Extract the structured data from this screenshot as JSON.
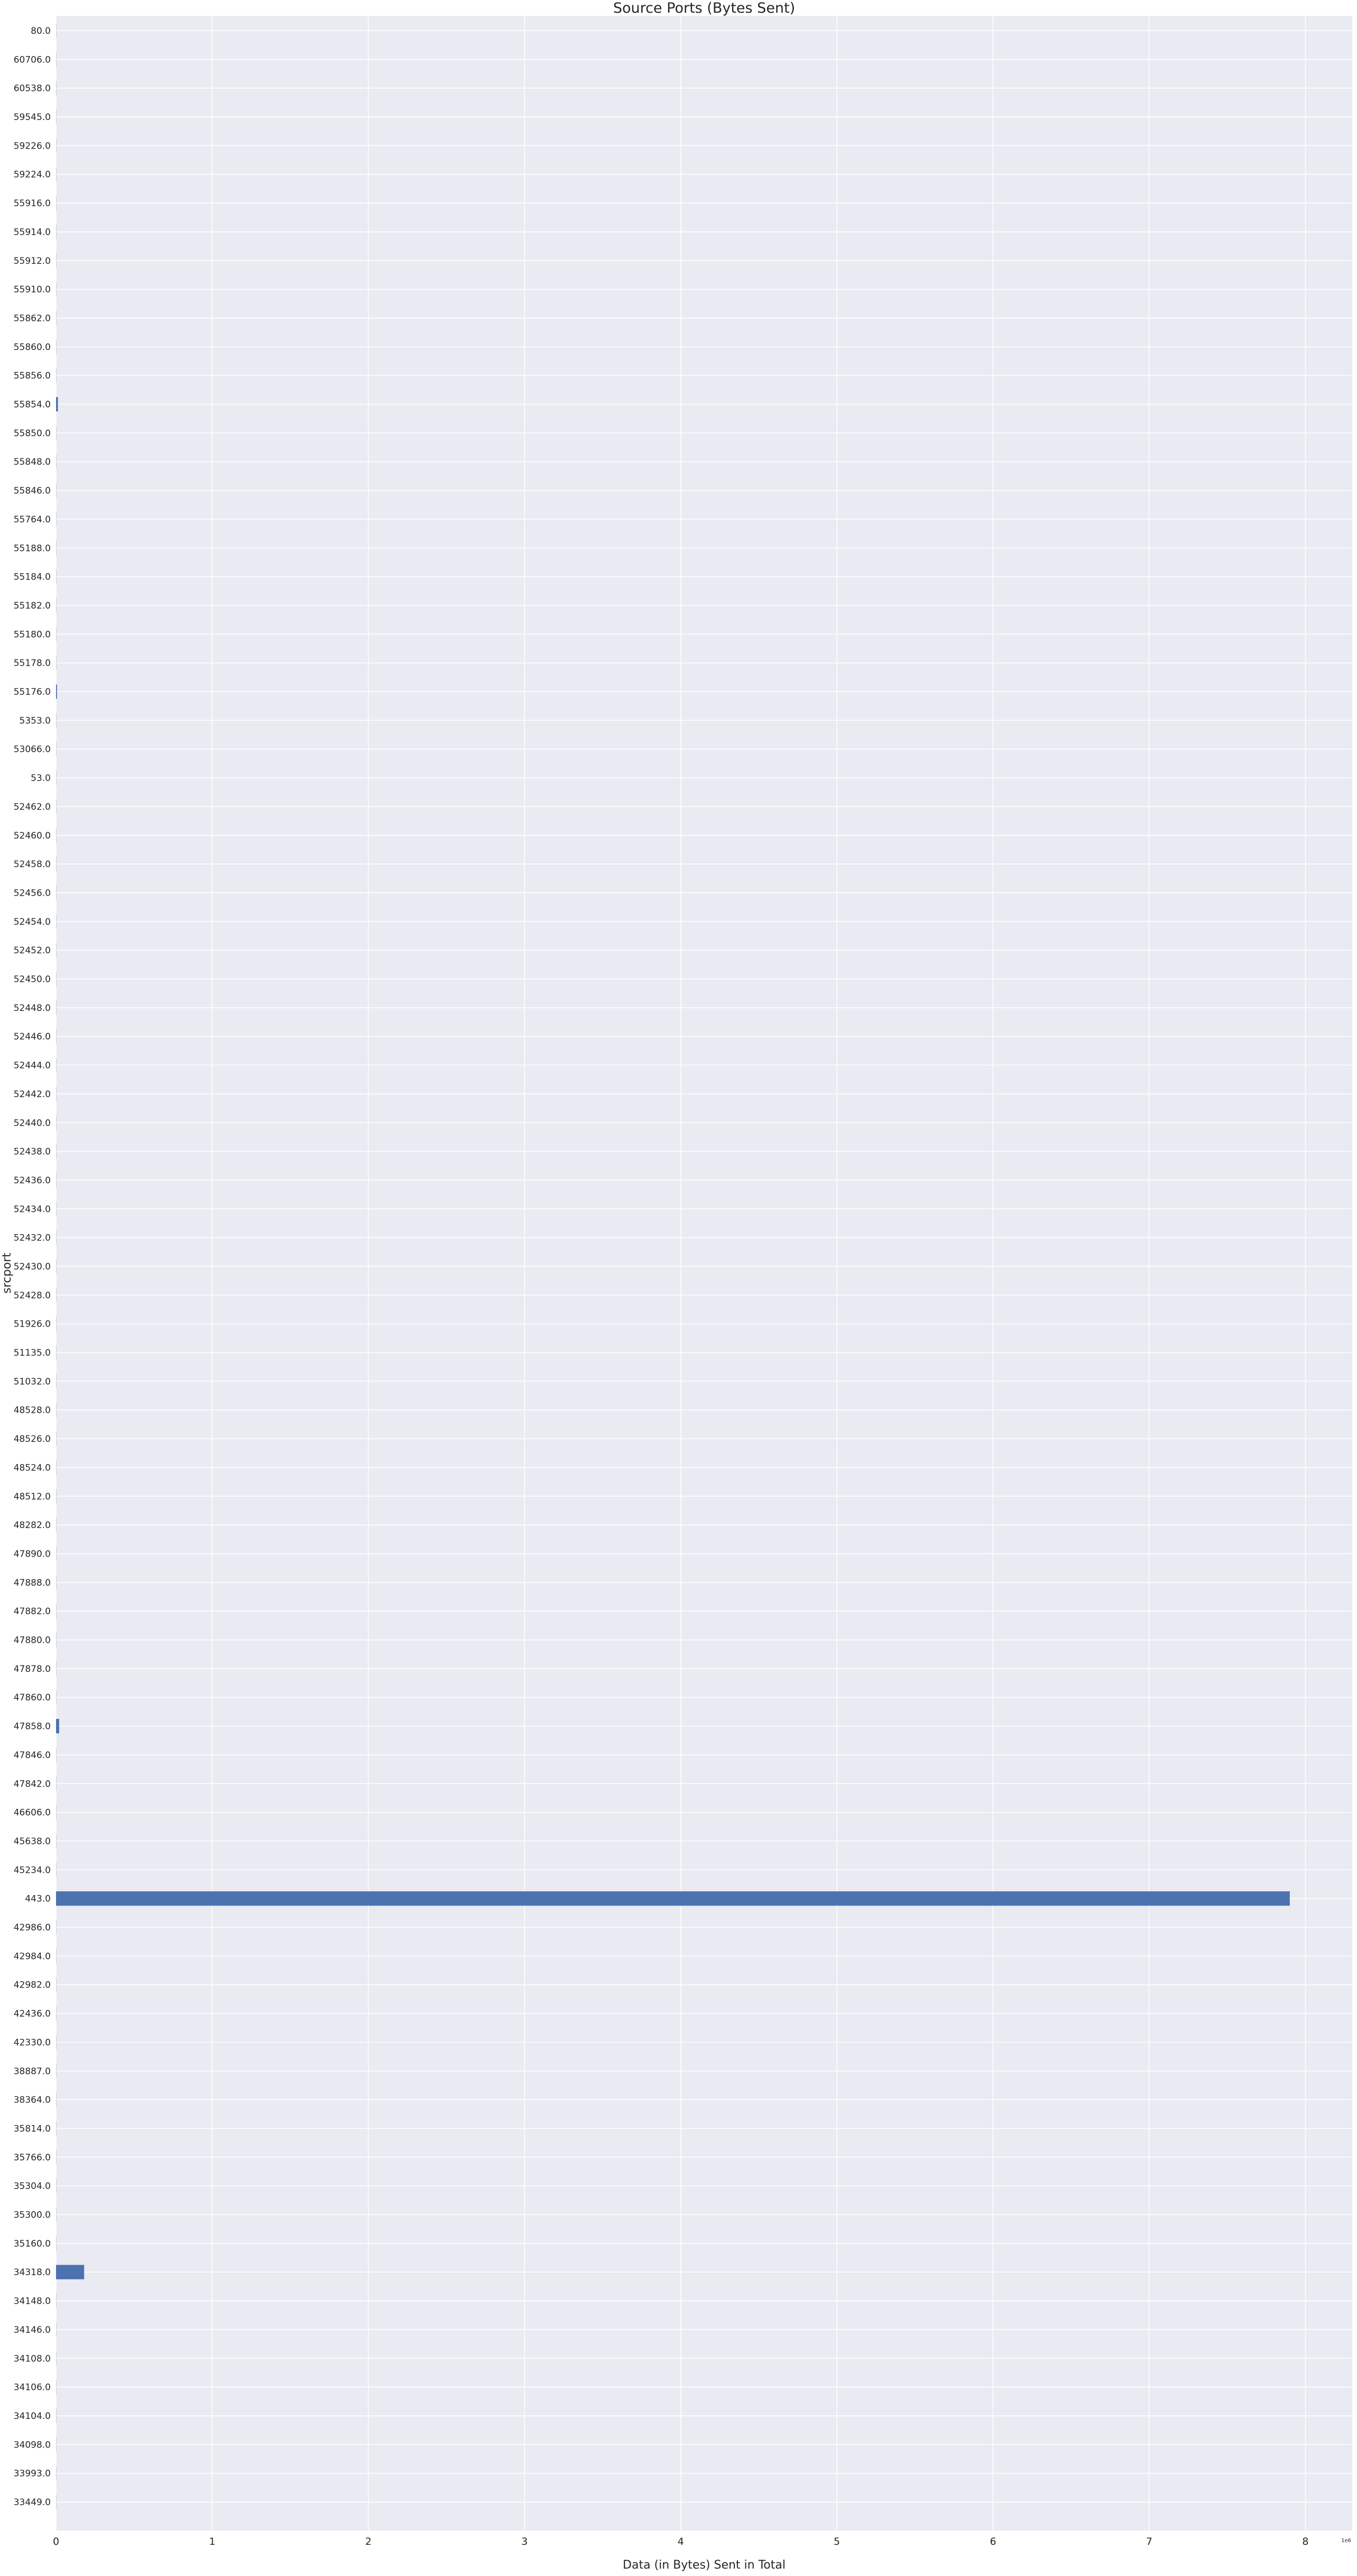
{
  "chart_data": {
    "type": "bar",
    "orientation": "horizontal",
    "title": "Source Ports (Bytes Sent)",
    "xlabel": "Data (in Bytes) Sent in Total",
    "ylabel": "srcport",
    "x_offset_label": "1e6",
    "xlim": [
      0,
      8.3
    ],
    "xticks": [
      "0",
      "1",
      "2",
      "3",
      "4",
      "5",
      "6",
      "7",
      "8"
    ],
    "grid": true,
    "bar_color": "#4c72b0",
    "background_color": "#eaeaf2",
    "grid_color": "#ffffff",
    "categories": [
      "80.0",
      "60706.0",
      "60538.0",
      "59545.0",
      "59226.0",
      "59224.0",
      "55916.0",
      "55914.0",
      "55912.0",
      "55910.0",
      "55862.0",
      "55860.0",
      "55856.0",
      "55854.0",
      "55850.0",
      "55848.0",
      "55846.0",
      "55764.0",
      "55188.0",
      "55184.0",
      "55182.0",
      "55180.0",
      "55178.0",
      "55176.0",
      "5353.0",
      "53066.0",
      "53.0",
      "52462.0",
      "52460.0",
      "52458.0",
      "52456.0",
      "52454.0",
      "52452.0",
      "52450.0",
      "52448.0",
      "52446.0",
      "52444.0",
      "52442.0",
      "52440.0",
      "52438.0",
      "52436.0",
      "52434.0",
      "52432.0",
      "52430.0",
      "52428.0",
      "51926.0",
      "51135.0",
      "51032.0",
      "48528.0",
      "48526.0",
      "48524.0",
      "48512.0",
      "48282.0",
      "47890.0",
      "47888.0",
      "47882.0",
      "47880.0",
      "47878.0",
      "47860.0",
      "47858.0",
      "47846.0",
      "47842.0",
      "46606.0",
      "45638.0",
      "45234.0",
      "443.0",
      "42986.0",
      "42984.0",
      "42982.0",
      "42436.0",
      "42330.0",
      "38887.0",
      "38364.0",
      "35814.0",
      "35766.0",
      "35304.0",
      "35300.0",
      "35160.0",
      "34318.0",
      "34148.0",
      "34146.0",
      "34108.0",
      "34106.0",
      "34104.0",
      "34098.0",
      "33993.0",
      "33449.0"
    ],
    "values": [
      0.001,
      0.001,
      0.001,
      0.001,
      0.001,
      0.001,
      0.001,
      0.001,
      0.001,
      0.001,
      0.001,
      0.001,
      0.001,
      0.012,
      0.001,
      0.001,
      0.001,
      0.001,
      0.001,
      0.001,
      0.001,
      0.001,
      0.001,
      0.006,
      0.001,
      0.001,
      0.001,
      0.001,
      0.001,
      0.001,
      0.001,
      0.001,
      0.001,
      0.001,
      0.001,
      0.001,
      0.001,
      0.001,
      0.001,
      0.001,
      0.001,
      0.001,
      0.001,
      0.001,
      0.001,
      0.001,
      0.001,
      0.001,
      0.001,
      0.001,
      0.001,
      0.001,
      0.001,
      0.001,
      0.001,
      0.001,
      0.001,
      0.001,
      0.001,
      0.02,
      0.001,
      0.001,
      0.001,
      0.001,
      0.001,
      7.9,
      0.001,
      0.001,
      0.001,
      0.001,
      0.001,
      0.001,
      0.001,
      0.001,
      0.001,
      0.001,
      0.001,
      0.001,
      0.18,
      0.001,
      0.001,
      0.001,
      0.001,
      0.001,
      0.001,
      0.001,
      0.001
    ]
  }
}
